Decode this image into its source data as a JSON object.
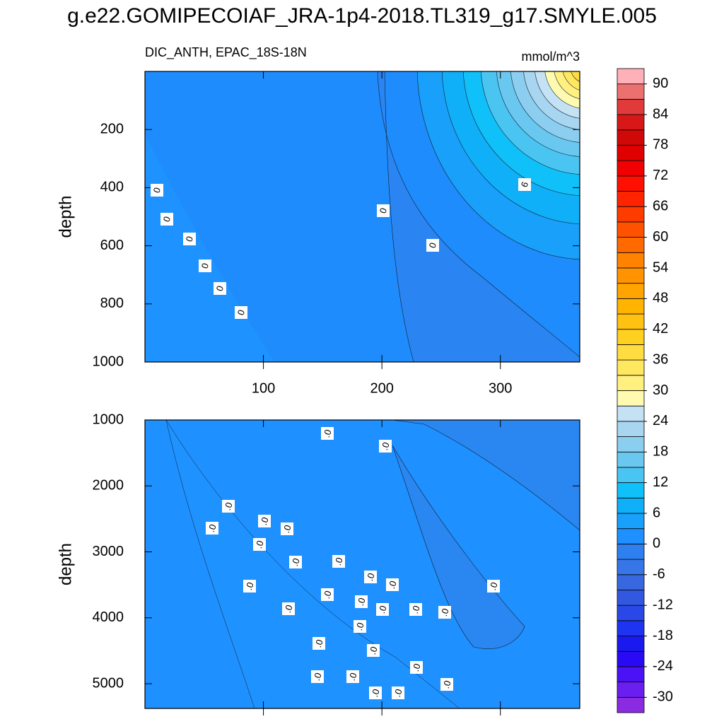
{
  "title": "g.e22.GOMIPECOIAF_JRA-1p4-2018.TL319_g17.SMYLE.005",
  "chart_data": [
    {
      "type": "contour",
      "subtitle": "DIC_ANTH, EPAC_18S-18N",
      "units": "mmol/m^3",
      "ylabel": "depth",
      "xlim": [
        0,
        367
      ],
      "xticks": [
        100,
        200,
        300
      ],
      "xtick_labels": true,
      "ylim": [
        1000,
        0
      ],
      "yticks": [
        200,
        400,
        600,
        800,
        1000
      ],
      "contour_labels": [
        "0",
        "0",
        "0",
        "0",
        "0",
        "0",
        "0",
        "0",
        "6"
      ]
    },
    {
      "type": "contour",
      "ylabel": "depth",
      "xlim": [
        0,
        367
      ],
      "xticks": [
        100,
        200,
        300
      ],
      "xtick_labels": false,
      "ylim": [
        5375,
        1000
      ],
      "yticks": [
        1000,
        2000,
        3000,
        4000,
        5000
      ],
      "contour_labels": [
        ".0",
        ".0",
        ".0",
        ".0",
        ".0",
        ".0",
        ".0",
        ".0",
        ".0",
        ".0",
        ".0",
        ".0",
        ".0",
        ".0",
        ".0",
        ".0",
        ".0",
        ".0",
        ".0",
        ".0",
        ".0",
        ".0",
        ".0",
        ".0",
        ".0",
        ".0",
        ".0",
        ".0"
      ]
    }
  ],
  "colorbar": {
    "clim": [
      -33,
      93
    ],
    "ticks": [
      -30,
      -24,
      -18,
      -12,
      -6,
      0,
      6,
      12,
      18,
      24,
      30,
      36,
      42,
      48,
      54,
      60,
      66,
      72,
      78,
      84,
      90
    ],
    "colors": [
      "#8a2be2",
      "#6a1ef0",
      "#4a12f5",
      "#2a0af5",
      "#1a1af0",
      "#1e34f0",
      "#2a48e8",
      "#3258e0",
      "#3868e0",
      "#3676e8",
      "#2e80f0",
      "#1e90ff",
      "#18a0fa",
      "#10b0f8",
      "#10c0f8",
      "#4ac4f0",
      "#6ac8f0",
      "#8ccef0",
      "#a8d6f0",
      "#c4e2f4",
      "#fffab0",
      "#fff080",
      "#ffe860",
      "#ffdc40",
      "#ffd020",
      "#ffc210",
      "#ffb400",
      "#ffa400",
      "#ff9400",
      "#ff8200",
      "#ff6a00",
      "#ff5200",
      "#ff3c00",
      "#ff2400",
      "#ff1000",
      "#f00000",
      "#e00000",
      "#d00808",
      "#d81818",
      "#e03a3a",
      "#ec7070",
      "#ffb0b8"
    ]
  }
}
